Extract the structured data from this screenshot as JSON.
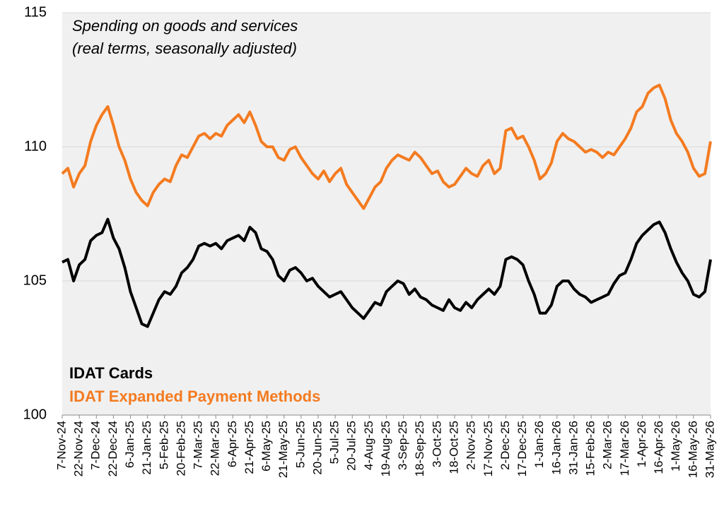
{
  "chart_data": {
    "type": "line",
    "title": "Spending on goods and services",
    "subtitle": "(real terms, seasonally adjusted)",
    "categories": [
      "7-Nov-24",
      null,
      null,
      "22-Nov-24",
      null,
      null,
      "7-Dec-24",
      null,
      null,
      "22-Dec-24",
      null,
      null,
      "6-Jan-25",
      null,
      null,
      "21-Jan-25",
      null,
      null,
      "5-Feb-25",
      null,
      null,
      "20-Feb-25",
      null,
      null,
      "7-Mar-25",
      null,
      null,
      "22-Mar-25",
      null,
      null,
      "6-Apr-25",
      null,
      null,
      "21-Apr-25",
      null,
      null,
      "6-May-25",
      null,
      null,
      "21-May-25",
      null,
      null,
      "5-Jun-25",
      null,
      null,
      "20-Jun-25",
      null,
      null,
      "5-Jul-25",
      null,
      null,
      "20-Jul-25",
      null,
      null,
      "4-Aug-25",
      null,
      null,
      "19-Aug-25",
      null,
      null,
      "3-Sep-25",
      null,
      null,
      "18-Sep-25",
      null,
      null,
      "3-Oct-25",
      null,
      null,
      "18-Oct-25",
      null,
      null,
      "2-Nov-25",
      null,
      null,
      "17-Nov-25",
      null,
      null,
      "2-Dec-25",
      null,
      null,
      "17-Dec-25",
      null,
      null,
      "1-Jan-26",
      null,
      null,
      "16-Jan-26",
      null,
      null,
      "31-Jan-26",
      null,
      null,
      "15-Feb-26",
      null,
      null,
      "2-Mar-26",
      null,
      null,
      "17-Mar-26",
      null,
      null,
      "1-Apr-26",
      null,
      null,
      "16-Apr-26",
      null,
      null,
      "1-May-26",
      null,
      null,
      "16-May-26",
      null,
      null,
      "31-May-26"
    ],
    "series": [
      {
        "name": "IDAT Cards",
        "color": "#000000",
        "values": [
          105.7,
          105.8,
          105.0,
          105.6,
          105.8,
          106.5,
          106.7,
          106.8,
          107.3,
          106.6,
          106.2,
          105.5,
          104.6,
          104.0,
          103.4,
          103.3,
          103.8,
          104.3,
          104.6,
          104.5,
          104.8,
          105.3,
          105.5,
          105.8,
          106.3,
          106.4,
          106.3,
          106.4,
          106.2,
          106.5,
          106.6,
          106.7,
          106.5,
          107.0,
          106.8,
          106.2,
          106.1,
          105.8,
          105.2,
          105.0,
          105.4,
          105.5,
          105.3,
          105.0,
          105.1,
          104.8,
          104.6,
          104.4,
          104.5,
          104.6,
          104.3,
          104.0,
          103.8,
          103.6,
          103.9,
          104.2,
          104.1,
          104.6,
          104.8,
          105.0,
          104.9,
          104.5,
          104.7,
          104.4,
          104.3,
          104.1,
          104.0,
          103.9,
          104.3,
          104.0,
          103.9,
          104.2,
          104.0,
          104.3,
          104.5,
          104.7,
          104.5,
          104.8,
          105.8,
          105.9,
          105.8,
          105.6,
          105.0,
          104.5,
          103.8,
          103.8,
          104.1,
          104.8,
          105.0,
          105.0,
          104.7,
          104.5,
          104.4,
          104.2,
          104.3,
          104.4,
          104.5,
          104.9,
          105.2,
          105.3,
          105.8,
          106.4,
          106.7,
          106.9,
          107.1,
          107.2,
          106.8,
          106.2,
          105.7,
          105.3,
          105.0,
          104.5,
          104.4,
          104.6,
          105.8
        ]
      },
      {
        "name": "IDAT Expanded Payment Methods",
        "color": "#f47b20",
        "values": [
          109.0,
          109.2,
          108.5,
          109.0,
          109.3,
          110.2,
          110.8,
          111.2,
          111.5,
          110.8,
          110.0,
          109.5,
          108.8,
          108.3,
          108.0,
          107.8,
          108.3,
          108.6,
          108.8,
          108.7,
          109.3,
          109.7,
          109.6,
          110.0,
          110.4,
          110.5,
          110.3,
          110.5,
          110.4,
          110.8,
          111.0,
          111.2,
          110.9,
          111.3,
          110.8,
          110.2,
          110.0,
          110.0,
          109.6,
          109.5,
          109.9,
          110.0,
          109.6,
          109.3,
          109.0,
          108.8,
          109.1,
          108.7,
          109.0,
          109.2,
          108.6,
          108.3,
          108.0,
          107.7,
          108.1,
          108.5,
          108.7,
          109.2,
          109.5,
          109.7,
          109.6,
          109.5,
          109.8,
          109.6,
          109.3,
          109.0,
          109.1,
          108.7,
          108.5,
          108.6,
          108.9,
          109.2,
          109.0,
          108.9,
          109.3,
          109.5,
          109.0,
          109.2,
          110.6,
          110.7,
          110.3,
          110.4,
          110.0,
          109.5,
          108.8,
          109.0,
          109.4,
          110.2,
          110.5,
          110.3,
          110.2,
          110.0,
          109.8,
          109.9,
          109.8,
          109.6,
          109.8,
          109.7,
          110.0,
          110.3,
          110.7,
          111.3,
          111.5,
          112.0,
          112.2,
          112.3,
          111.8,
          111.0,
          110.5,
          110.2,
          109.8,
          109.2,
          108.9,
          109.0,
          110.2
        ]
      }
    ],
    "ylim": [
      100,
      115
    ],
    "yticks": [
      100,
      105,
      110,
      115
    ],
    "grid": true,
    "legend": "lower left"
  }
}
